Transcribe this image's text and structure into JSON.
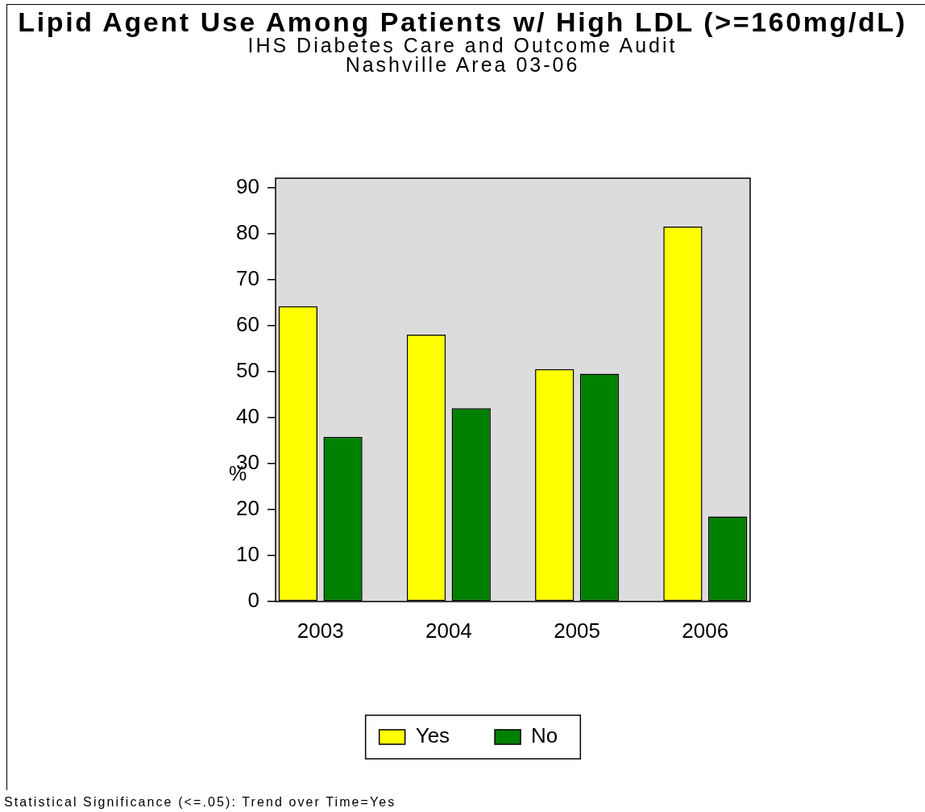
{
  "chart_data": {
    "type": "bar",
    "title": "Lipid Agent Use Among Patients w/ High LDL (>=160mg/dL)",
    "subtitle": "IHS Diabetes Care and Outcome Audit\nNashville Area 03-06",
    "ylabel": "%",
    "categories": [
      "2003",
      "2004",
      "2005",
      "2006"
    ],
    "series": [
      {
        "name": "Yes",
        "color": "#ffff00",
        "values": [
          64.2,
          58,
          50.5,
          81.5
        ]
      },
      {
        "name": "No",
        "color": "#008000",
        "values": [
          35.8,
          42,
          49.5,
          18.5
        ]
      }
    ],
    "ylim": [
      0,
      92
    ],
    "yticks": [
      0,
      10,
      20,
      30,
      40,
      50,
      60,
      70,
      80,
      90
    ],
    "legend": "bottom",
    "annotations": [
      "Statistical Significance (<=.05): Trend over Time=Yes"
    ]
  }
}
